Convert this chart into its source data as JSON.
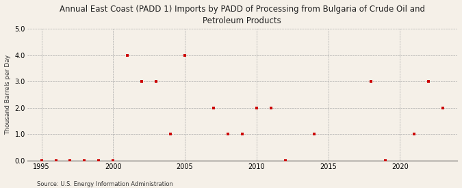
{
  "title": "Annual East Coast (PADD 1) Imports by PADD of Processing from Bulgaria of Crude Oil and\nPetroleum Products",
  "ylabel": "Thousand Barrels per Day",
  "source": "Source: U.S. Energy Information Administration",
  "background_color": "#f5f0e8",
  "marker_color": "#cc0000",
  "xlim": [
    1994,
    2024
  ],
  "ylim": [
    0.0,
    5.0
  ],
  "yticks": [
    0.0,
    1.0,
    2.0,
    3.0,
    4.0,
    5.0
  ],
  "xticks": [
    1995,
    2000,
    2005,
    2010,
    2015,
    2020
  ],
  "data_x": [
    1995,
    1996,
    1997,
    1998,
    1999,
    2000,
    2001,
    2002,
    2003,
    2004,
    2005,
    2007,
    2008,
    2009,
    2010,
    2011,
    2012,
    2014,
    2018,
    2019,
    2021,
    2022,
    2023
  ],
  "data_y": [
    0.0,
    0.0,
    0.0,
    0.0,
    0.0,
    0.0,
    4.0,
    3.0,
    3.0,
    1.0,
    4.0,
    2.0,
    1.0,
    1.0,
    2.0,
    2.0,
    0.0,
    1.0,
    3.0,
    0.0,
    1.0,
    3.0,
    2.0
  ]
}
